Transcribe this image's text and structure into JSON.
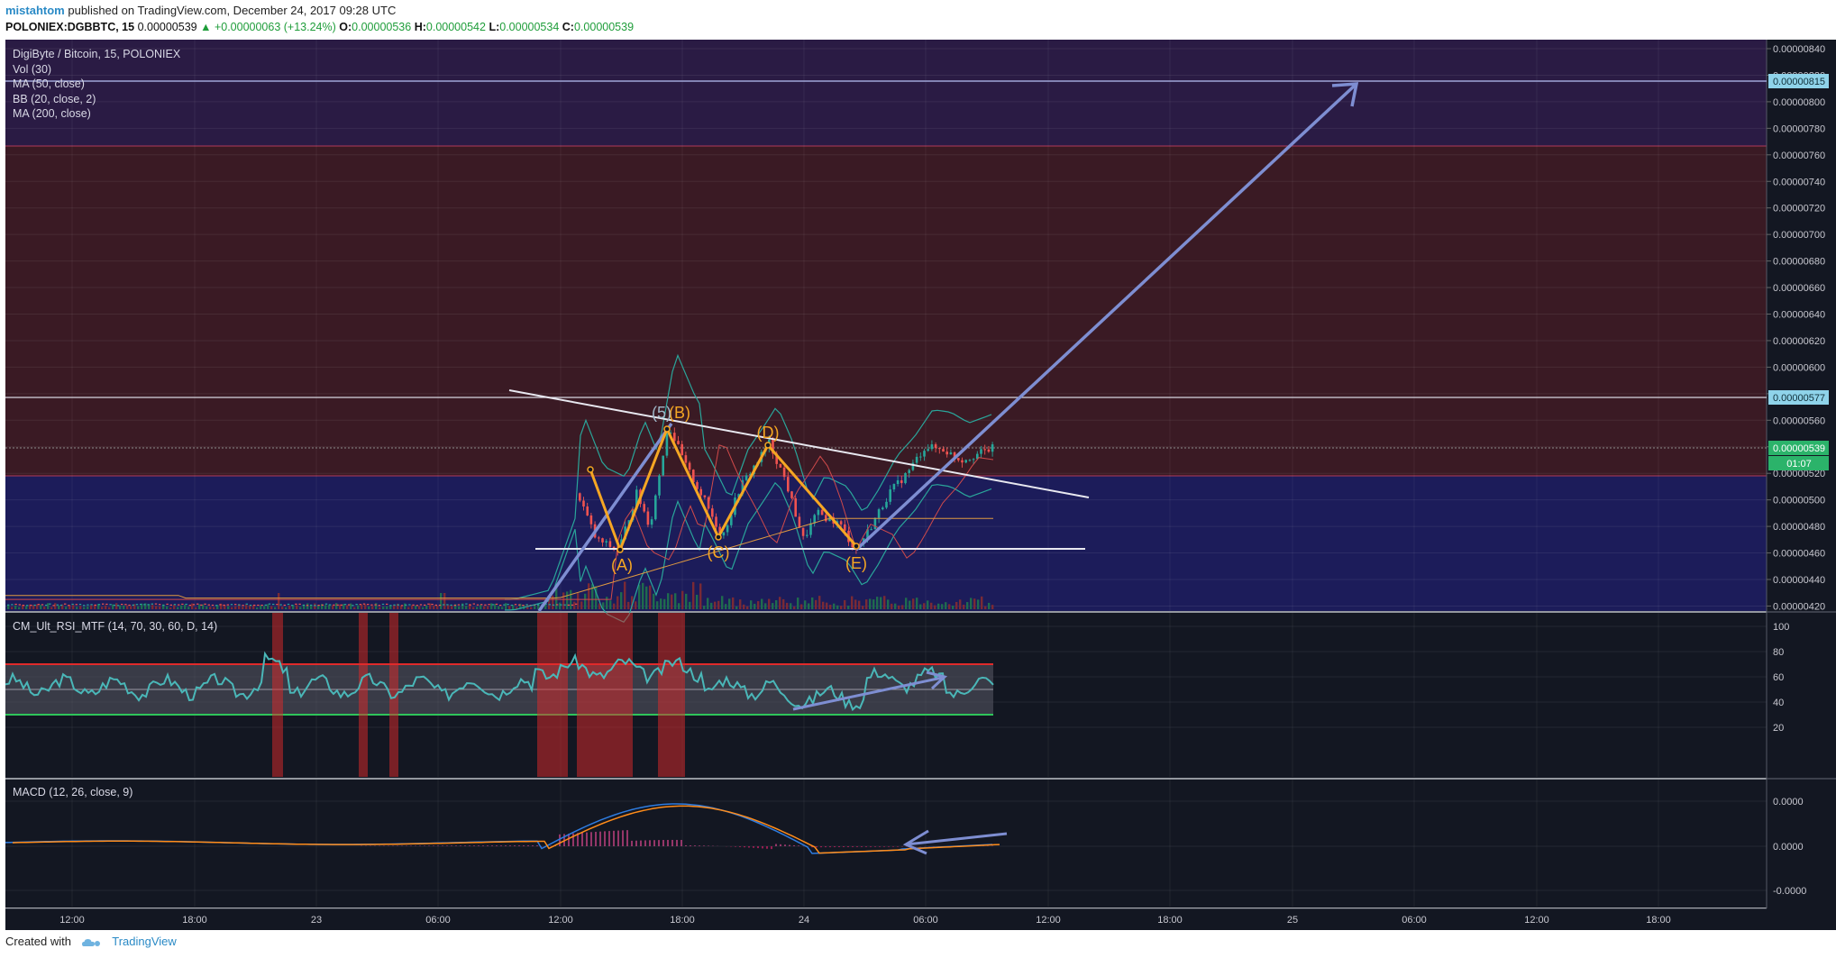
{
  "header": {
    "publisher": "mistahtom",
    "publish_text": "published on TradingView.com, December 24, 2017 09:28 UTC",
    "symbol": "POLONIEX:DGBBTC, 15",
    "last": "0.00000539",
    "change": "+0.00000063 (+13.24%)",
    "open_label": "O:",
    "open": "0.00000536",
    "high_label": "H:",
    "high": "0.00000542",
    "low_label": "L:",
    "low": "0.00000534",
    "close_label": "C:",
    "close": "0.00000539"
  },
  "legend": {
    "title": "DigiByte / Bitcoin, 15, POLONIEX",
    "items": [
      "Vol (30)",
      "MA (50, close)",
      "BB (20, close, 2)",
      "MA (200, close)"
    ]
  },
  "rsi_panel": {
    "title": "CM_Ult_RSI_MTF (14, 70, 30, 60, D, 14)",
    "ticks": [
      "100",
      "80",
      "60",
      "40",
      "20"
    ]
  },
  "macd_panel": {
    "title": "MACD (12, 26, close, 9)",
    "ticks": [
      "0.0000",
      "0.0000",
      "-0.0000"
    ]
  },
  "price_axis": {
    "ticks": [
      "0.00000840",
      "0.00000820",
      "0.00000800",
      "0.00000780",
      "0.00000760",
      "0.00000740",
      "0.00000720",
      "0.00000700",
      "0.00000680",
      "0.00000660",
      "0.00000640",
      "0.00000620",
      "0.00000600",
      "0.00000580",
      "0.00000560",
      "0.00000540",
      "0.00000520",
      "0.00000500",
      "0.00000480",
      "0.00000460",
      "0.00000440",
      "0.00000420"
    ],
    "tag_top": "0.00000815",
    "tag_resistance": "0.00000577",
    "tag_last": "0.00000539",
    "tag_countdown": "01:07"
  },
  "time_axis": [
    "12:00",
    "18:00",
    "23",
    "06:00",
    "12:00",
    "18:00",
    "24",
    "06:00",
    "12:00",
    "18:00",
    "25",
    "06:00",
    "12:00",
    "18:00"
  ],
  "wave_labels": [
    "(A)",
    "(B)",
    "(C)",
    "(D)",
    "(E)",
    "(5)"
  ],
  "footer": {
    "created_with": "Created with",
    "brand": "TradingView"
  },
  "colors": {
    "background": "#131722",
    "upper_zone": "#3a1a24",
    "top_zone": "#2a1b44",
    "lower_zone": "#1c1c5a",
    "wave": "#f5a623",
    "arrow": "#7e8ed2",
    "bollinger": "#2aa59a",
    "rsi": "#4ab7b8",
    "rsi_band": "#5a5a66",
    "oversold": "#2ec45a",
    "overbought": "#e02a2a",
    "macd": "#2e7ce0",
    "signal": "#ff8c1a",
    "candle_up": "#26a69a",
    "candle_down": "#ef5350"
  },
  "chart_data": [
    {
      "type": "line",
      "title": "DigiByte / Bitcoin, 15, POLONIEX",
      "x": [
        "12:00",
        "18:00",
        "23",
        "06:00",
        "12:00",
        "18:00",
        "24",
        "06:00"
      ],
      "ylim": [
        4.16e-06,
        8.44e-06
      ],
      "series": [
        {
          "name": "close (approx.)",
          "values": [
            4.22e-06,
            4.23e-06,
            4.24e-06,
            4.23e-06,
            5.05e-06,
            5.2e-06,
            4.88e-06,
            5.39e-06
          ]
        }
      ],
      "levels": {
        "resistance": 5.77e-06,
        "target": 8.15e-06,
        "support": 4.62e-06
      },
      "wave_points": [
        {
          "label": "(A)",
          "value": 4.62e-06
        },
        {
          "label": "(B)",
          "value": 5.57e-06
        },
        {
          "label": "(C)",
          "value": 4.72e-06
        },
        {
          "label": "(D)",
          "value": 5.43e-06
        },
        {
          "label": "(E)",
          "value": 4.64e-06
        }
      ],
      "grid": true
    },
    {
      "type": "line",
      "title": "CM_Ult_RSI_MTF (14, 70, 30, 60, D, 14)",
      "ylim": [
        10,
        105
      ],
      "bands": {
        "overbought": 70,
        "oversold": 30,
        "mid": 50
      },
      "series": [
        {
          "name": "RSI",
          "values": [
            48,
            52,
            55,
            50,
            78,
            60,
            50,
            72,
            62,
            70,
            48,
            55,
            50,
            38,
            45,
            65,
            56
          ]
        }
      ]
    },
    {
      "type": "line",
      "title": "MACD (12, 26, close, 9)",
      "series": [
        {
          "name": "MACD",
          "values": [
            0,
            0.2,
            0.3,
            0.2,
            0.8,
            2.0,
            2.2,
            1.5,
            0.6,
            0,
            -0.4,
            -0.1,
            0.1
          ]
        },
        {
          "name": "Signal",
          "values": [
            0,
            0.1,
            0.3,
            0.2,
            0.6,
            1.8,
            2.0,
            1.6,
            0.8,
            0.1,
            -0.3,
            -0.1,
            0.05
          ]
        }
      ]
    }
  ]
}
